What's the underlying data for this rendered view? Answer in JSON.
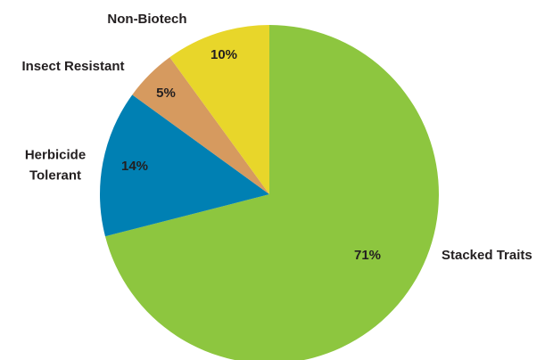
{
  "chart_data": {
    "type": "pie",
    "categories": [
      "Stacked Traits",
      "Herbicide Tolerant",
      "Insect Resistant",
      "Non-Biotech"
    ],
    "values": [
      71,
      14,
      5,
      10
    ],
    "value_labels": [
      "71%",
      "14%",
      "5%",
      "10%"
    ],
    "colors": [
      "#8dc63f",
      "#0080b3",
      "#d69a5f",
      "#e8d62a"
    ]
  }
}
